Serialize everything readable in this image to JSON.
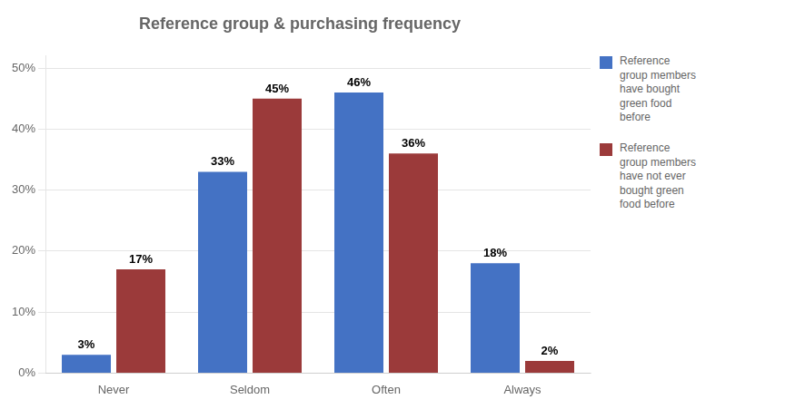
{
  "chart_data": {
    "type": "bar",
    "title": "Reference group & purchasing frequency",
    "categories": [
      "Never",
      "Seldom",
      "Often",
      "Always"
    ],
    "series": [
      {
        "name": "Reference\ngroup members\nhave bought\ngreen food\nbefore",
        "color": "#4472C4",
        "values": [
          3,
          33,
          46,
          18
        ],
        "value_labels": [
          "3%",
          "33%",
          "46%",
          "18%"
        ]
      },
      {
        "name": "Reference\ngroup members\nhave not ever\nbought green\nfood before",
        "color": "#9B3A3A",
        "values": [
          17,
          45,
          36,
          2
        ],
        "value_labels": [
          "17%",
          "45%",
          "36%",
          "2%"
        ]
      }
    ],
    "ylim": [
      0,
      52
    ],
    "yticks": [
      {
        "value": 0,
        "label": "0%"
      },
      {
        "value": 10,
        "label": "10%"
      },
      {
        "value": 20,
        "label": "20%"
      },
      {
        "value": 30,
        "label": "30%"
      },
      {
        "value": 40,
        "label": "40%"
      },
      {
        "value": 50,
        "label": "50%"
      }
    ],
    "grid": true,
    "legend": "right",
    "data_labels": true
  }
}
